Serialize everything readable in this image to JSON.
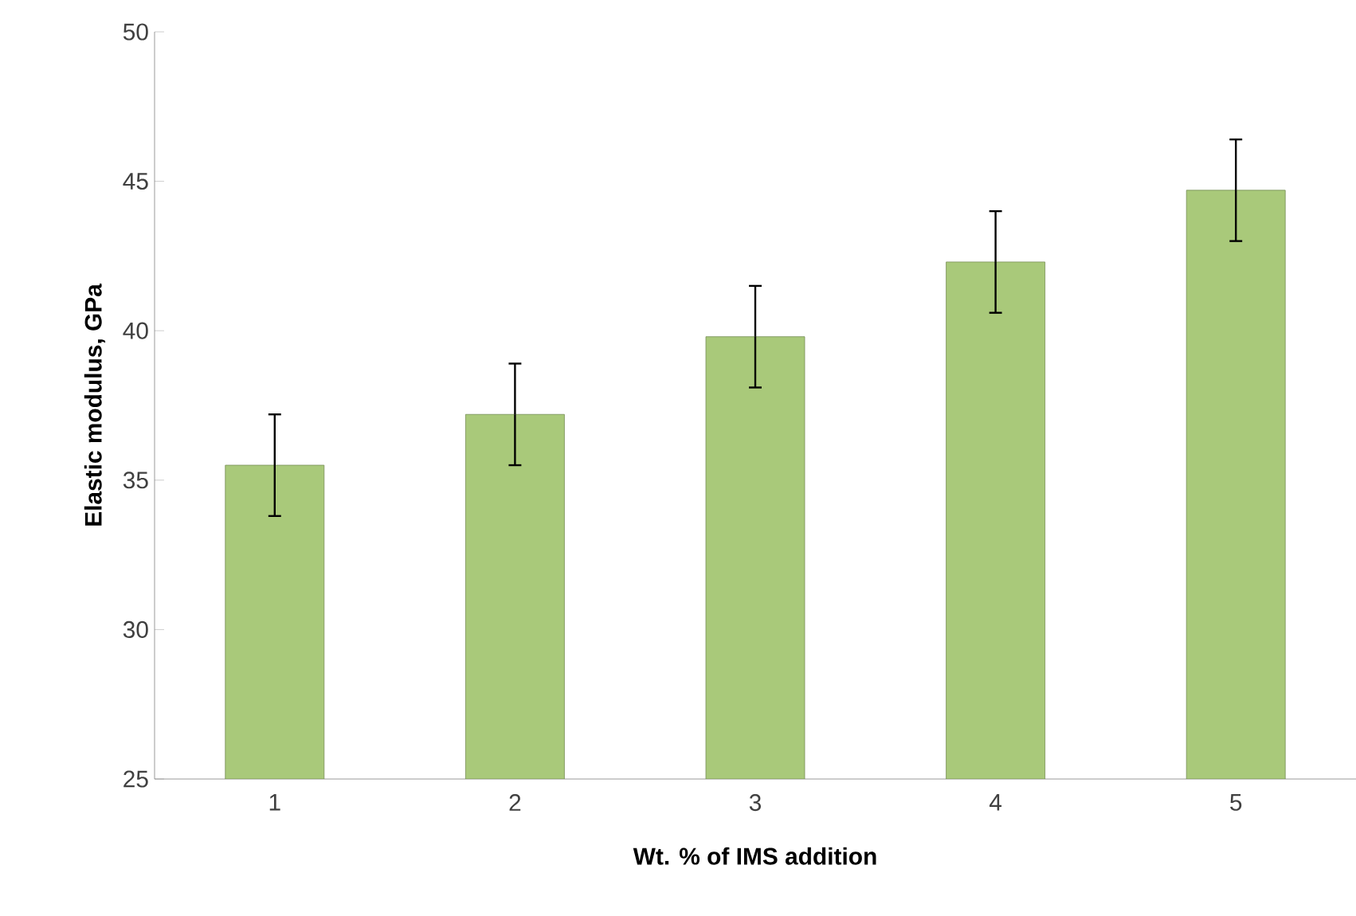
{
  "chart_data": {
    "type": "bar",
    "xlabel": "Wt. %  of IMS addition",
    "ylabel": "Elastic modulus, GPa",
    "categories": [
      "1",
      "2",
      "3",
      "4",
      "5"
    ],
    "values": [
      35.5,
      37.2,
      39.8,
      42.3,
      44.7
    ],
    "errors": [
      1.7,
      1.7,
      1.7,
      1.7,
      1.7
    ],
    "color": "#a9c97a",
    "ylim": [
      25,
      50
    ],
    "yticks": [
      25,
      30,
      35,
      40,
      45,
      50
    ],
    "grid": false
  }
}
